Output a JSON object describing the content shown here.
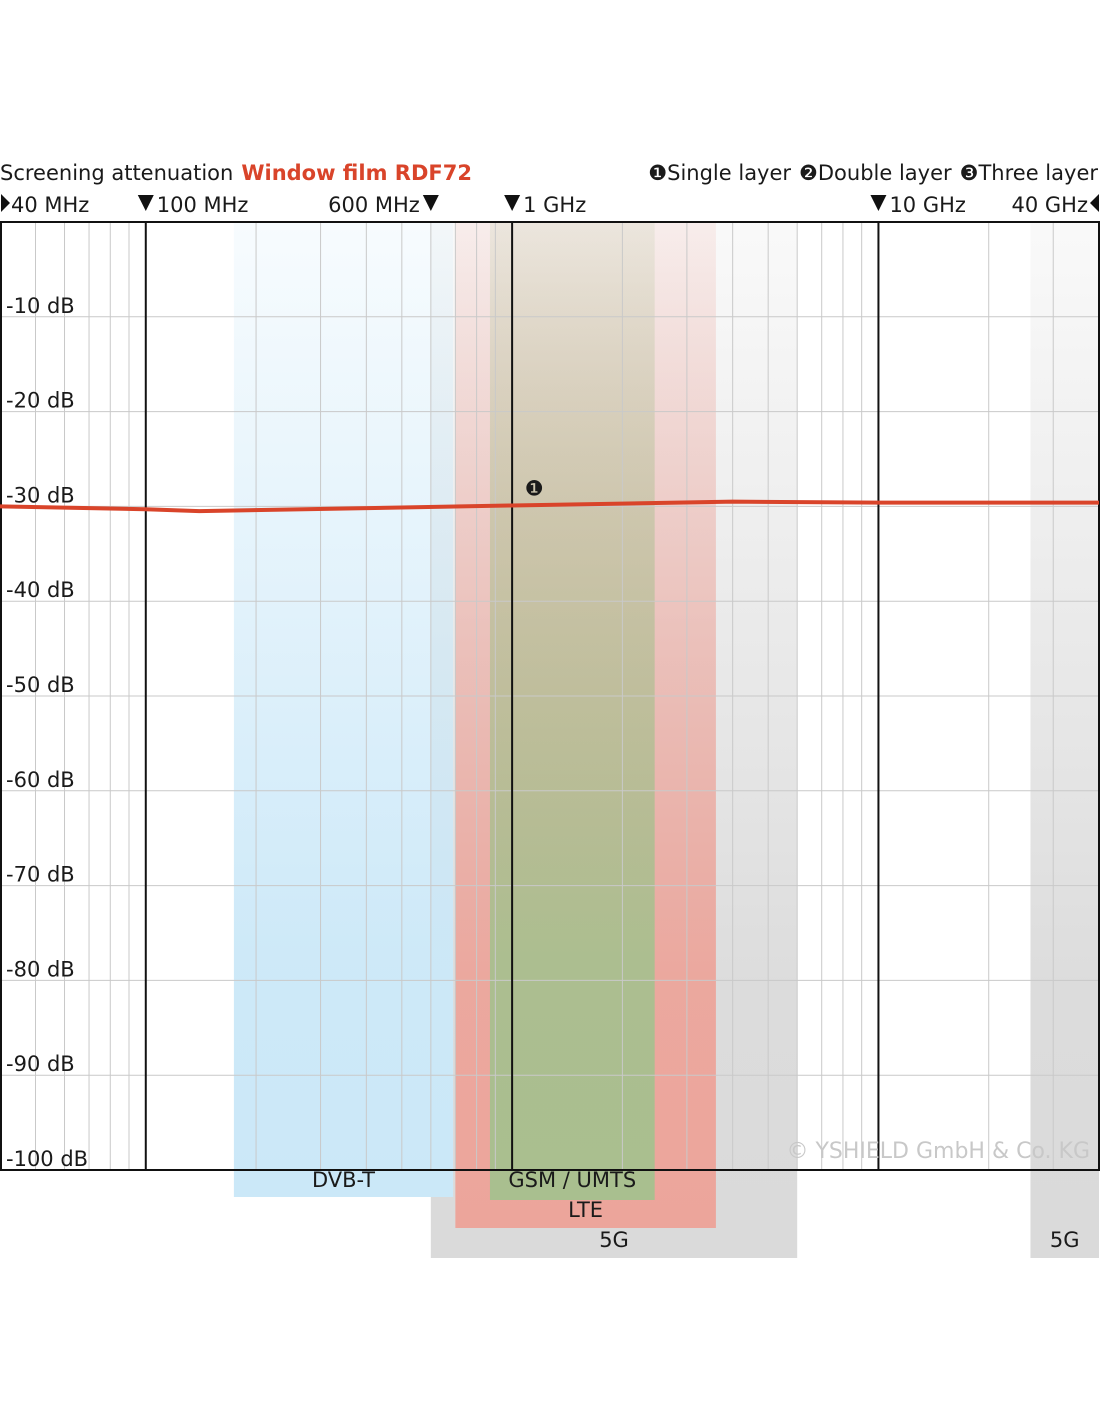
{
  "chart_data": {
    "type": "line",
    "title": "Screening attenuation",
    "title_highlight": "Window film RDF72",
    "legend": [
      {
        "symbol": "❶",
        "label": "Single layer"
      },
      {
        "symbol": "❷",
        "label": "Double layer"
      },
      {
        "symbol": "❸",
        "label": "Three layer"
      }
    ],
    "log_x": true,
    "xlim": [
      40,
      40000
    ],
    "xticks": [
      {
        "value": 40,
        "label": "40 MHz"
      },
      {
        "value": 100,
        "label": "100 MHz"
      },
      {
        "value": 600,
        "label": "600 MHz"
      },
      {
        "value": 1000,
        "label": "1 GHz"
      },
      {
        "value": 10000,
        "label": "10 GHz"
      },
      {
        "value": 40000,
        "label": "40 GHz"
      }
    ],
    "xgrid_major": [
      100,
      1000,
      10000
    ],
    "xgrid_minor": [
      50,
      60,
      70,
      80,
      90,
      200,
      300,
      400,
      500,
      600,
      700,
      800,
      900,
      2000,
      3000,
      4000,
      5000,
      6000,
      7000,
      8000,
      9000,
      20000,
      30000
    ],
    "ylim": [
      -100,
      0
    ],
    "yticks": [
      {
        "value": -10,
        "label": "-10 dB"
      },
      {
        "value": -20,
        "label": "-20 dB"
      },
      {
        "value": -30,
        "label": "-30 dB"
      },
      {
        "value": -40,
        "label": "-40 dB"
      },
      {
        "value": -50,
        "label": "-50 dB"
      },
      {
        "value": -60,
        "label": "-60 dB"
      },
      {
        "value": -70,
        "label": "-70 dB"
      },
      {
        "value": -80,
        "label": "-80 dB"
      },
      {
        "value": -90,
        "label": "-90 dB"
      },
      {
        "value": -100,
        "label": "-100 dB"
      }
    ],
    "grid": true,
    "series": [
      {
        "color": "#d9442a",
        "x": [
          40,
          100,
          140,
          1000,
          4000,
          10000,
          40000
        ],
        "values": [
          -30,
          -30.3,
          -30.5,
          -29.9,
          -29.5,
          -29.6,
          -29.6
        ]
      }
    ],
    "bands": [
      {
        "label": "DVB-T",
        "from": 174,
        "to": 690,
        "color": "#cbe8f8"
      },
      {
        "label": "GSM / UMTS",
        "from": 870,
        "to": 2450,
        "color": "#a9bf8f"
      },
      {
        "label": "LTE",
        "from": 700,
        "to": 3600,
        "color": "#eca59b"
      },
      {
        "label": "5G",
        "from": 600,
        "to": 6000,
        "color": "#dadada"
      },
      {
        "label": "5G",
        "from": 26000,
        "to": 40000,
        "color": "#dadada"
      }
    ],
    "watermark": "© YSHIELD GmbH & Co. KG"
  }
}
